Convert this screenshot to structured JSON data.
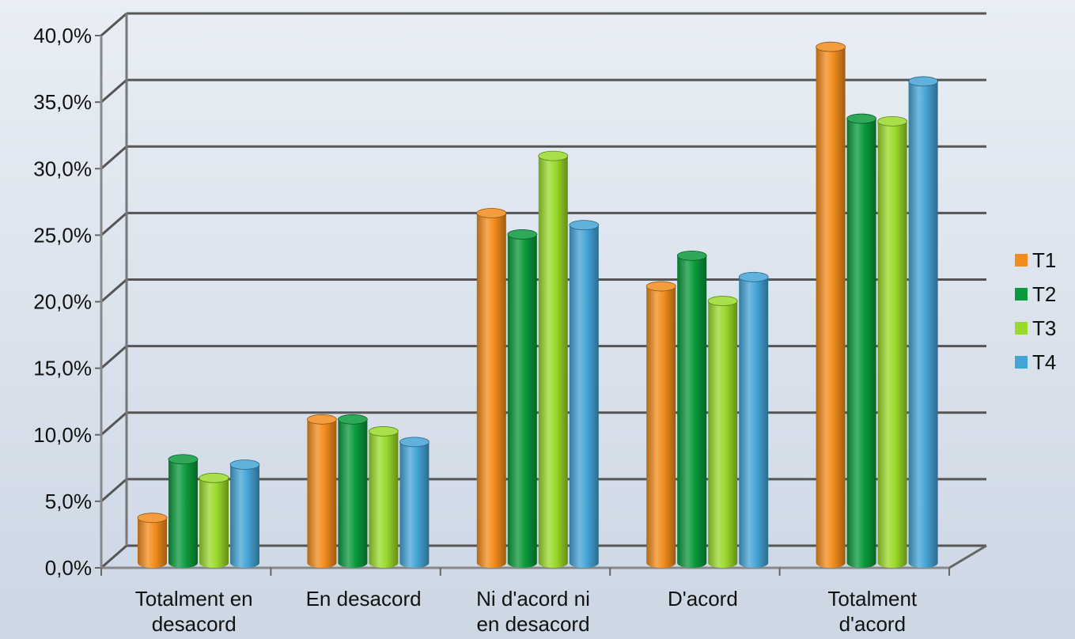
{
  "chart_data": {
    "type": "bar",
    "categories": [
      [
        "Totalment en",
        "desacord"
      ],
      [
        "En desacord"
      ],
      [
        "Ni d'acord ni",
        "en desacord"
      ],
      [
        "D'acord"
      ],
      [
        "Totalment",
        "d'acord"
      ]
    ],
    "series": [
      {
        "name": "T1",
        "color": "#f28c1c",
        "values": [
          3.4,
          10.8,
          26.3,
          20.8,
          38.8
        ]
      },
      {
        "name": "T2",
        "color": "#0a9a3c",
        "values": [
          7.8,
          10.8,
          24.7,
          23.1,
          33.4
        ]
      },
      {
        "name": "T3",
        "color": "#99d92a",
        "values": [
          6.4,
          9.9,
          30.6,
          19.7,
          33.2
        ]
      },
      {
        "name": "T4",
        "color": "#44a4d6",
        "values": [
          7.4,
          9.1,
          25.4,
          21.5,
          36.2
        ]
      }
    ],
    "y_ticks": [
      "0,0%",
      "5,0%",
      "10,0%",
      "15,0%",
      "20,0%",
      "25,0%",
      "30,0%",
      "35,0%",
      "40,0%"
    ],
    "ylim": [
      0,
      40
    ],
    "legend_position": "right",
    "grid": true
  }
}
